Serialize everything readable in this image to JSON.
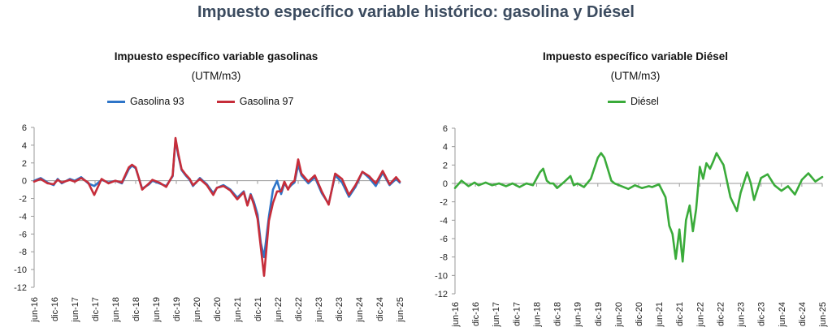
{
  "title": "Impuesto específico variable histórico: gasolina y Diésel",
  "chart_data": [
    {
      "type": "line",
      "title": "Impuesto específico variable gasolinas",
      "subtitle": "(UTM/m3)",
      "ylim": [
        -12,
        6
      ],
      "yticks": [
        6,
        4,
        2,
        0,
        -2,
        -4,
        -6,
        -8,
        -10,
        -12
      ],
      "xlim": [
        2016.42,
        2025.42
      ],
      "xtick_labels": [
        "jun-16",
        "dic-16",
        "jun-17",
        "dic-17",
        "jun-18",
        "dic-18",
        "jun-19",
        "dic-19",
        "jun-20",
        "dic-20",
        "jun-21",
        "dic-21",
        "jun-22",
        "dic-22",
        "jun-23",
        "dic-23",
        "jun-24",
        "dic-24",
        "jun-25"
      ],
      "grid": false,
      "legend": "top",
      "series": [
        {
          "name": "Gasolina 93",
          "color": "#2e75c8",
          "x": [
            2016.42,
            2016.58,
            2016.75,
            2016.9,
            2017.0,
            2017.1,
            2017.3,
            2017.42,
            2017.58,
            2017.75,
            2017.9,
            2018.08,
            2018.25,
            2018.42,
            2018.58,
            2018.75,
            2018.83,
            2018.92,
            2019.08,
            2019.25,
            2019.33,
            2019.5,
            2019.67,
            2019.83,
            2019.9,
            2019.97,
            2020.05,
            2020.15,
            2020.25,
            2020.33,
            2020.5,
            2020.67,
            2020.83,
            2020.92,
            2021.08,
            2021.25,
            2021.42,
            2021.58,
            2021.67,
            2021.75,
            2021.83,
            2021.92,
            2022.0,
            2022.08,
            2022.2,
            2022.3,
            2022.4,
            2022.5,
            2022.58,
            2022.67,
            2022.75,
            2022.83,
            2022.92,
            2023.0,
            2023.17,
            2023.33,
            2023.5,
            2023.67,
            2023.83,
            2024.0,
            2024.17,
            2024.33,
            2024.5,
            2024.67,
            2024.83,
            2025.0,
            2025.17,
            2025.33,
            2025.42
          ],
          "y": [
            0.0,
            0.3,
            -0.2,
            -0.5,
            0.2,
            -0.3,
            0.2,
            0.0,
            0.4,
            -0.3,
            -0.6,
            0.1,
            -0.2,
            0.0,
            -0.3,
            1.3,
            1.7,
            1.4,
            -0.9,
            -0.4,
            0.0,
            -0.3,
            -0.6,
            0.5,
            4.6,
            2.8,
            1.2,
            0.6,
            0.1,
            -0.6,
            0.3,
            -0.4,
            -1.4,
            -0.8,
            -0.5,
            -1.0,
            -1.9,
            -1.2,
            -2.7,
            -1.5,
            -2.4,
            -3.8,
            -7.0,
            -8.6,
            -4.0,
            -1.0,
            0.0,
            -1.5,
            -0.3,
            -0.9,
            -0.5,
            -0.2,
            1.8,
            0.6,
            -0.3,
            0.4,
            -1.4,
            -2.6,
            0.6,
            -0.2,
            -1.8,
            -0.7,
            1.0,
            0.3,
            -0.6,
            0.9,
            -0.5,
            0.2,
            -0.2
          ]
        },
        {
          "name": "Gasolina 97",
          "color": "#c62d3a",
          "x": [
            2016.42,
            2016.58,
            2016.75,
            2016.9,
            2017.0,
            2017.1,
            2017.3,
            2017.42,
            2017.58,
            2017.75,
            2017.9,
            2018.08,
            2018.25,
            2018.42,
            2018.58,
            2018.75,
            2018.83,
            2018.92,
            2019.08,
            2019.25,
            2019.33,
            2019.5,
            2019.67,
            2019.83,
            2019.9,
            2019.97,
            2020.05,
            2020.15,
            2020.25,
            2020.33,
            2020.5,
            2020.67,
            2020.83,
            2020.92,
            2021.08,
            2021.25,
            2021.42,
            2021.58,
            2021.67,
            2021.75,
            2021.83,
            2021.92,
            2022.0,
            2022.08,
            2022.2,
            2022.3,
            2022.4,
            2022.5,
            2022.58,
            2022.67,
            2022.75,
            2022.83,
            2022.92,
            2023.0,
            2023.17,
            2023.33,
            2023.5,
            2023.67,
            2023.83,
            2024.0,
            2024.17,
            2024.33,
            2024.5,
            2024.67,
            2024.83,
            2025.0,
            2025.17,
            2025.33,
            2025.42
          ],
          "y": [
            -0.1,
            0.2,
            -0.3,
            -0.4,
            0.1,
            -0.2,
            0.1,
            -0.1,
            0.3,
            -0.2,
            -1.6,
            0.2,
            -0.3,
            0.0,
            -0.2,
            1.5,
            1.8,
            1.5,
            -1.0,
            -0.3,
            0.1,
            -0.2,
            -0.7,
            0.6,
            4.8,
            3.0,
            1.3,
            0.7,
            0.2,
            -0.5,
            0.2,
            -0.5,
            -1.6,
            -0.8,
            -0.6,
            -1.1,
            -2.1,
            -1.3,
            -2.8,
            -1.6,
            -2.7,
            -4.3,
            -7.5,
            -10.7,
            -4.5,
            -2.5,
            -1.2,
            -1.2,
            -0.1,
            -1.0,
            -0.3,
            0.0,
            2.4,
            0.8,
            -0.1,
            0.6,
            -1.2,
            -2.7,
            0.8,
            0.2,
            -1.6,
            -0.5,
            1.0,
            0.5,
            -0.3,
            1.1,
            -0.4,
            0.4,
            -0.1
          ]
        }
      ]
    },
    {
      "type": "line",
      "title": "Impuesto específico variable Diésel",
      "subtitle": "(UTM/m3)",
      "ylim": [
        -12,
        6
      ],
      "yticks": [
        6,
        4,
        2,
        0,
        -2,
        -4,
        -6,
        -8,
        -10,
        -12
      ],
      "xlim": [
        2016.42,
        2025.42
      ],
      "xtick_labels": [
        "jun-16",
        "dic-16",
        "jun-17",
        "dic-17",
        "jun-18",
        "dic-18",
        "jun-19",
        "dic-19",
        "jun-20",
        "dic-20",
        "jun-21",
        "dic-21",
        "jun-22",
        "dic-22",
        "jun-23",
        "dic-23",
        "jun-24",
        "dic-24",
        "jun-25"
      ],
      "grid": false,
      "legend": "top",
      "series": [
        {
          "name": "Diésel",
          "color": "#3aab3a",
          "x": [
            2016.42,
            2016.58,
            2016.75,
            2016.9,
            2017.0,
            2017.17,
            2017.33,
            2017.5,
            2017.67,
            2017.83,
            2018.0,
            2018.17,
            2018.33,
            2018.5,
            2018.58,
            2018.67,
            2018.75,
            2018.83,
            2018.92,
            2019.08,
            2019.25,
            2019.33,
            2019.42,
            2019.58,
            2019.75,
            2019.92,
            2020.0,
            2020.08,
            2020.17,
            2020.25,
            2020.33,
            2020.5,
            2020.67,
            2020.83,
            2021.0,
            2021.17,
            2021.25,
            2021.42,
            2021.58,
            2021.67,
            2021.75,
            2021.83,
            2021.92,
            2022.0,
            2022.08,
            2022.17,
            2022.25,
            2022.33,
            2022.42,
            2022.5,
            2022.58,
            2022.67,
            2022.75,
            2022.83,
            2022.92,
            2023.0,
            2023.17,
            2023.33,
            2023.42,
            2023.58,
            2023.67,
            2023.75,
            2023.92,
            2024.08,
            2024.25,
            2024.42,
            2024.58,
            2024.75,
            2024.92,
            2025.08,
            2025.25,
            2025.42
          ],
          "y": [
            -0.5,
            0.3,
            -0.3,
            0.1,
            -0.2,
            0.1,
            -0.2,
            0.0,
            -0.3,
            0.0,
            -0.4,
            0.0,
            -0.2,
            1.2,
            1.6,
            0.3,
            0.0,
            0.0,
            -0.5,
            0.1,
            0.8,
            -0.2,
            0.0,
            -0.4,
            0.5,
            2.8,
            3.3,
            2.8,
            1.5,
            0.3,
            0.0,
            -0.3,
            -0.6,
            -0.2,
            -0.5,
            -0.3,
            -0.4,
            -0.1,
            -1.5,
            -4.6,
            -5.5,
            -8.2,
            -5.0,
            -8.5,
            -4.0,
            -2.4,
            -5.2,
            -2.8,
            1.8,
            0.5,
            2.2,
            1.6,
            2.4,
            3.3,
            2.6,
            2.0,
            -1.5,
            -3.0,
            -1.0,
            1.2,
            0.0,
            -1.8,
            0.6,
            1.0,
            -0.2,
            -0.8,
            -0.3,
            -1.2,
            0.4,
            1.1,
            0.2,
            0.7
          ]
        }
      ]
    }
  ]
}
